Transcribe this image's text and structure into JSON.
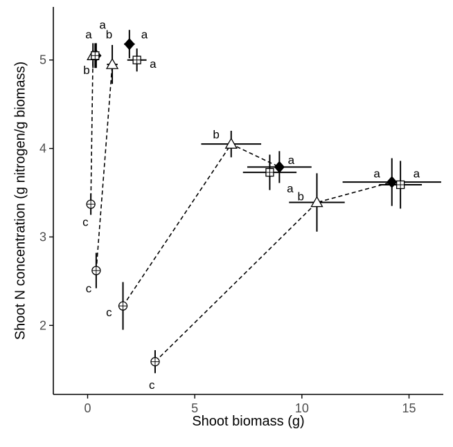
{
  "chart_data": {
    "type": "scatter",
    "title": "",
    "xlabel": "Shoot biomass (g)",
    "ylabel": "Shoot N concentration (g nitrogen/g biomass)",
    "xlim": [
      -1.6,
      16.6
    ],
    "ylim": [
      1.22,
      5.6
    ],
    "xticks": [
      0,
      5,
      10,
      15
    ],
    "yticks": [
      2,
      3,
      4,
      5
    ],
    "x_tick_labels": [
      "0",
      "5",
      "10",
      "15"
    ],
    "y_tick_labels": [
      "2",
      "3",
      "4",
      "5"
    ],
    "grid": false,
    "legend": "none",
    "series": [
      {
        "shape": "circle-cross",
        "points": [
          {
            "x": 0.15,
            "y": 3.37,
            "xerr": 0.0,
            "yerr": 0.12,
            "label": "c"
          },
          {
            "x": 0.4,
            "y": 2.62,
            "xerr": 0.0,
            "yerr": 0.2,
            "label": "c"
          },
          {
            "x": 1.65,
            "y": 2.22,
            "xerr": 0.0,
            "yerr": 0.27,
            "label": "c"
          },
          {
            "x": 3.15,
            "y": 1.59,
            "xerr": 0.0,
            "yerr": 0.13,
            "label": "c"
          }
        ]
      },
      {
        "shape": "triangle",
        "points": [
          {
            "x": 0.25,
            "y": 5.05,
            "xerr": 0.0,
            "yerr": 0.14,
            "label": "b"
          },
          {
            "x": 1.15,
            "y": 4.95,
            "xerr": 0.25,
            "yerr": 0.22,
            "label": "b"
          },
          {
            "x": 6.7,
            "y": 4.05,
            "xerr": 1.4,
            "yerr": 0.15,
            "label": "b"
          },
          {
            "x": 10.7,
            "y": 3.39,
            "xerr": 1.3,
            "yerr": 0.33,
            "label": "b"
          }
        ]
      },
      {
        "shape": "diamond",
        "points": [
          {
            "x": 0.4,
            "y": 5.05,
            "xerr": 0.0,
            "yerr": 0.14,
            "label": "a"
          },
          {
            "x": 1.95,
            "y": 5.18,
            "xerr": 0.25,
            "yerr": 0.16,
            "label": "a"
          },
          {
            "x": 8.95,
            "y": 3.79,
            "xerr": 1.5,
            "yerr": 0.18,
            "label": "a"
          },
          {
            "x": 14.2,
            "y": 3.62,
            "xerr": 2.3,
            "yerr": 0.27,
            "label": "a"
          }
        ]
      },
      {
        "shape": "square-cross",
        "points": [
          {
            "x": 0.35,
            "y": 5.05,
            "xerr": 0.0,
            "yerr": 0.14,
            "label": "a"
          },
          {
            "x": 2.3,
            "y": 5.0,
            "xerr": 0.45,
            "yerr": 0.13,
            "label": "a"
          },
          {
            "x": 8.5,
            "y": 3.73,
            "xerr": 1.25,
            "yerr": 0.2,
            "label": "a"
          },
          {
            "x": 14.6,
            "y": 3.59,
            "xerr": 1.0,
            "yerr": 0.27,
            "label": "a"
          }
        ]
      }
    ],
    "dashed_lines": [
      [
        [
          0.15,
          3.37
        ],
        [
          0.25,
          5.05
        ]
      ],
      [
        [
          0.4,
          2.62
        ],
        [
          1.15,
          4.95
        ]
      ],
      [
        [
          1.65,
          2.22
        ],
        [
          6.7,
          4.05
        ],
        [
          8.95,
          3.79
        ]
      ],
      [
        [
          3.15,
          1.59
        ],
        [
          10.7,
          3.39
        ],
        [
          14.2,
          3.62
        ]
      ]
    ],
    "annotations": [
      {
        "text": "a",
        "x": 0.05,
        "y": 5.29
      },
      {
        "text": "a",
        "x": 0.7,
        "y": 5.4
      },
      {
        "text": "b",
        "x": 1.0,
        "y": 5.29
      },
      {
        "text": "a",
        "x": 2.65,
        "y": 5.29
      },
      {
        "text": "b",
        "x": -0.05,
        "y": 4.89
      },
      {
        "text": "a",
        "x": 3.05,
        "y": 4.96
      },
      {
        "text": "b",
        "x": 6.0,
        "y": 4.16
      },
      {
        "text": "a",
        "x": 9.5,
        "y": 3.87
      },
      {
        "text": "a",
        "x": 9.45,
        "y": 3.55
      },
      {
        "text": "b",
        "x": 9.95,
        "y": 3.46
      },
      {
        "text": "c",
        "x": -0.1,
        "y": 3.17
      },
      {
        "text": "c",
        "x": 0.05,
        "y": 2.42
      },
      {
        "text": "c",
        "x": 1.0,
        "y": 2.15
      },
      {
        "text": "c",
        "x": 3.0,
        "y": 1.33
      },
      {
        "text": "a",
        "x": 13.5,
        "y": 3.72
      },
      {
        "text": "a",
        "x": 15.35,
        "y": 3.72
      }
    ]
  }
}
